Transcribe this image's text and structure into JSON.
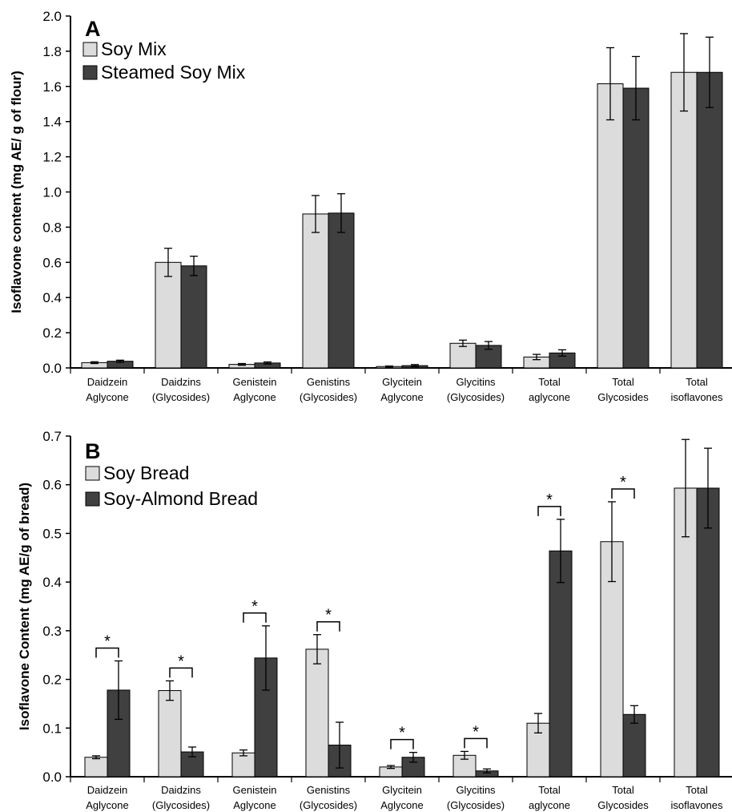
{
  "chart_data": [
    {
      "type": "bar",
      "panel_label": "A",
      "ylabel": "Isoflavone content (mg AE/ g of flour)",
      "ylim": [
        0,
        2.0
      ],
      "yticks": [
        "0.0",
        "0.2",
        "0.4",
        "0.6",
        "0.8",
        "1.0",
        "1.2",
        "1.4",
        "1.6",
        "1.8",
        "2.0"
      ],
      "ytick_values": [
        0,
        0.2,
        0.4,
        0.6,
        0.8,
        1.0,
        1.2,
        1.4,
        1.6,
        1.8,
        2.0
      ],
      "categories": [
        [
          "Daidzein",
          "Aglycone"
        ],
        [
          "Daidzins",
          "(Glycosides)"
        ],
        [
          "Genistein",
          "Aglycone"
        ],
        [
          "Genistins",
          "(Glycosides)"
        ],
        [
          "Glycitein",
          "Aglycone"
        ],
        [
          "Glycitins",
          "(Glycosides)"
        ],
        [
          "Total",
          "aglycone"
        ],
        [
          "Total",
          "Glycosides"
        ],
        [
          "Total",
          "isoflavones"
        ]
      ],
      "series": [
        {
          "name": "Soy Mix",
          "color": "#dcdcdc",
          "values": [
            0.03,
            0.6,
            0.02,
            0.875,
            0.008,
            0.14,
            0.062,
            1.615,
            1.68
          ],
          "errors": [
            0.005,
            0.08,
            0.005,
            0.105,
            0.003,
            0.018,
            0.015,
            0.205,
            0.22
          ]
        },
        {
          "name": "Steamed Soy Mix",
          "color": "#404040",
          "values": [
            0.038,
            0.58,
            0.028,
            0.88,
            0.013,
            0.128,
            0.085,
            1.59,
            1.68
          ],
          "errors": [
            0.006,
            0.055,
            0.006,
            0.11,
            0.006,
            0.022,
            0.018,
            0.18,
            0.2
          ]
        }
      ],
      "significance": [
        false,
        false,
        false,
        false,
        false,
        false,
        false,
        false,
        false
      ],
      "legend_position": "top-left",
      "grid": false
    },
    {
      "type": "bar",
      "panel_label": "B",
      "ylabel": "Isoflavone Content (mg AE/g of bread)",
      "ylim": [
        0,
        0.7
      ],
      "yticks": [
        "0.0",
        "0.1",
        "0.2",
        "0.3",
        "0.4",
        "0.5",
        "0.6",
        "0.7"
      ],
      "ytick_values": [
        0,
        0.1,
        0.2,
        0.3,
        0.4,
        0.5,
        0.6,
        0.7
      ],
      "categories": [
        [
          "Daidzein",
          "Aglycone"
        ],
        [
          "Daidzins",
          "(Glycosides)"
        ],
        [
          "Genistein",
          "Aglycone"
        ],
        [
          "Genistins",
          "(Glycosides)"
        ],
        [
          "Glycitein",
          "Aglycone"
        ],
        [
          "Glycitins",
          "(Glycosides)"
        ],
        [
          "Total",
          "aglycone"
        ],
        [
          "Total",
          "Glycosides"
        ],
        [
          "Total",
          "isoflavones"
        ]
      ],
      "series": [
        {
          "name": "Soy Bread",
          "color": "#dcdcdc",
          "values": [
            0.04,
            0.177,
            0.049,
            0.262,
            0.02,
            0.044,
            0.11,
            0.483,
            0.593
          ],
          "errors": [
            0.003,
            0.02,
            0.006,
            0.03,
            0.003,
            0.008,
            0.02,
            0.082,
            0.1
          ]
        },
        {
          "name": "Soy-Almond Bread",
          "color": "#404040",
          "values": [
            0.178,
            0.051,
            0.244,
            0.065,
            0.04,
            0.012,
            0.464,
            0.128,
            0.593
          ],
          "errors": [
            0.06,
            0.01,
            0.066,
            0.047,
            0.01,
            0.004,
            0.065,
            0.018,
            0.082
          ]
        }
      ],
      "significance": [
        true,
        true,
        true,
        true,
        true,
        true,
        true,
        true,
        false
      ],
      "significance_mark": "*",
      "legend_position": "top-left",
      "grid": false
    }
  ]
}
